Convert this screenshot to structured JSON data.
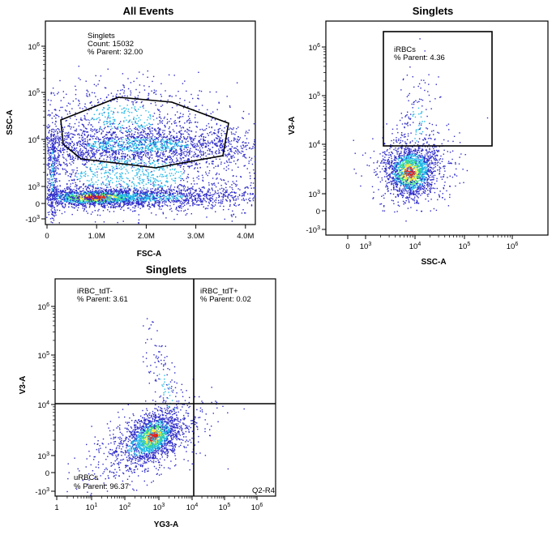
{
  "colors": {
    "density_low": "#2f2cc8",
    "density_mid_low": "#22b8e8",
    "density_mid": "#3ee27a",
    "density_mid_high": "#f2e93a",
    "density_high": "#e3201b",
    "gate": "#000000"
  },
  "chart_data": [
    {
      "type": "scatter",
      "plot_style": "pseudocolor density",
      "title": "All Events",
      "xlabel": "FSC-A",
      "ylabel": "SSC-A",
      "xscale": "linear",
      "yscale": "biexponential",
      "xlim": [
        0,
        4300000
      ],
      "x_ticks": [
        {
          "value": 0,
          "label": "0"
        },
        {
          "value": 1000000,
          "label": "1.0M"
        },
        {
          "value": 2000000,
          "label": "2.0M"
        },
        {
          "value": 3000000,
          "label": "3.0M"
        },
        {
          "value": 4000000,
          "label": "4.0M"
        }
      ],
      "y_ticks": [
        {
          "value": -1000,
          "label": "-10",
          "exp": "3"
        },
        {
          "value": 0,
          "label": "0",
          "exp": ""
        },
        {
          "value": 1000,
          "label": "10",
          "exp": "3"
        },
        {
          "value": 10000,
          "label": "10",
          "exp": "4"
        },
        {
          "value": 100000,
          "label": "10",
          "exp": "5"
        },
        {
          "value": 1000000,
          "label": "10",
          "exp": "6"
        }
      ],
      "populations": [
        {
          "name_shown": "",
          "x_center": 1000000,
          "y_center": 150,
          "density": "high"
        },
        {
          "name_shown": "",
          "x_center": 1800000,
          "y_center": 6000,
          "density": "medium"
        },
        {
          "name_shown": "",
          "x_center": 2200000,
          "y_center": 20000,
          "density": "low"
        }
      ],
      "gates": [
        {
          "name": "Singlets",
          "shape": "polygon",
          "stats": [
            {
              "label": "Singlets"
            },
            {
              "label": "Count: 15032"
            },
            {
              "label": "% Parent: 32.00"
            }
          ]
        }
      ]
    },
    {
      "type": "scatter",
      "plot_style": "pseudocolor density",
      "title": "Singlets",
      "xlabel": "SSC-A",
      "ylabel": "V3-A",
      "xscale": "biexponential",
      "yscale": "biexponential",
      "x_ticks": [
        {
          "value": 0,
          "label": "0",
          "exp": ""
        },
        {
          "value": 1000,
          "label": "10",
          "exp": "3"
        },
        {
          "value": 10000,
          "label": "10",
          "exp": "4"
        },
        {
          "value": 100000,
          "label": "10",
          "exp": "5"
        },
        {
          "value": 1000000,
          "label": "10",
          "exp": "6"
        }
      ],
      "y_ticks": [
        {
          "value": -1000,
          "label": "-10",
          "exp": "3"
        },
        {
          "value": 0,
          "label": "0",
          "exp": ""
        },
        {
          "value": 1000,
          "label": "10",
          "exp": "3"
        },
        {
          "value": 10000,
          "label": "10",
          "exp": "4"
        },
        {
          "value": 100000,
          "label": "10",
          "exp": "5"
        },
        {
          "value": 1000000,
          "label": "10",
          "exp": "6"
        }
      ],
      "populations": [
        {
          "name_shown": "",
          "x_center": 8000,
          "y_center": 2500,
          "density": "high"
        }
      ],
      "gates": [
        {
          "name": "iRBCs",
          "shape": "rectangle",
          "x_range": [
            2500,
            400000
          ],
          "y_range": [
            10000,
            1500000
          ],
          "stats": [
            {
              "label": "iRBCs"
            },
            {
              "label": "% Parent: 4.36"
            }
          ]
        }
      ]
    },
    {
      "type": "scatter",
      "plot_style": "pseudocolor density",
      "title": "Singlets",
      "xlabel": "YG3-A",
      "ylabel": "V3-A",
      "xscale": "biexponential",
      "yscale": "biexponential",
      "x_ticks": [
        {
          "value": 1,
          "label": "1",
          "exp": ""
        },
        {
          "value": 10,
          "label": "10",
          "exp": "1"
        },
        {
          "value": 100,
          "label": "10",
          "exp": "2"
        },
        {
          "value": 1000,
          "label": "10",
          "exp": "3"
        },
        {
          "value": 10000,
          "label": "10",
          "exp": "4"
        },
        {
          "value": 100000,
          "label": "10",
          "exp": "5"
        },
        {
          "value": 1000000,
          "label": "10",
          "exp": "6"
        }
      ],
      "y_ticks": [
        {
          "value": -1000,
          "label": "-10",
          "exp": "3"
        },
        {
          "value": 0,
          "label": "0",
          "exp": ""
        },
        {
          "value": 1000,
          "label": "10",
          "exp": "3"
        },
        {
          "value": 10000,
          "label": "10",
          "exp": "4"
        },
        {
          "value": 100000,
          "label": "10",
          "exp": "5"
        },
        {
          "value": 1000000,
          "label": "10",
          "exp": "6"
        }
      ],
      "quadrant_divider": {
        "x": 13000,
        "y": 10000
      },
      "populations": [
        {
          "name_shown": "",
          "x_center": 700,
          "y_center": 2000,
          "density": "high"
        }
      ],
      "gates": [
        {
          "name": "iRBC_tdT-",
          "quadrant": "top-left",
          "stats": [
            {
              "label": "iRBC_tdT-"
            },
            {
              "label": "% Parent: 3.61"
            }
          ]
        },
        {
          "name": "iRBC_tdT+",
          "quadrant": "top-right",
          "stats": [
            {
              "label": "iRBC_tdT+"
            },
            {
              "label": "% Parent: 0.02"
            }
          ]
        },
        {
          "name": "uRBCs",
          "quadrant": "bottom-left",
          "stats": [
            {
              "label": "uRBCs"
            },
            {
              "label": "% Parent: 96.37"
            }
          ]
        },
        {
          "name": "Q2-R4",
          "quadrant": "bottom-right",
          "stats": [
            {
              "label": "Q2-R4"
            }
          ]
        }
      ]
    }
  ]
}
